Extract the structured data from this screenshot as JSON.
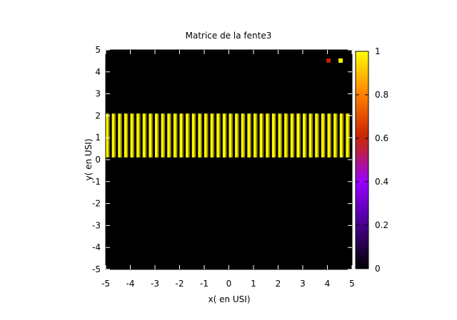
{
  "chart_data": {
    "type": "heatmap",
    "title": "Matrice de la fente3",
    "xlabel": "x( en USI)",
    "ylabel": "y( en USI)",
    "xlim": [
      -5,
      5
    ],
    "ylim": [
      -5,
      5
    ],
    "x_ticks": [
      "-5",
      "-4",
      "-3",
      "-2",
      "-1",
      "0",
      "1",
      "2",
      "3",
      "4",
      "5"
    ],
    "y_ticks": [
      "5",
      "4",
      "3",
      "2",
      "1",
      "0",
      "-1",
      "-2",
      "-3",
      "-4",
      "-5"
    ],
    "colorbar": {
      "range": [
        0,
        1
      ],
      "ticks": [
        "1",
        "0.8",
        "0.6",
        "0.4",
        "0.2",
        "0"
      ],
      "palette": [
        "#000000",
        "#8000ff",
        "#c0202a",
        "#ff8000",
        "#ffff00"
      ]
    },
    "background_value": 0,
    "band": {
      "y_min": 0.1,
      "y_max": 2.1,
      "value": 1,
      "slit_count": 40,
      "x_min": -5,
      "x_max": 5
    },
    "legend_markers": [
      {
        "value": 0.6,
        "color": "#c02000"
      },
      {
        "value": 1,
        "color": "#ffff00"
      }
    ],
    "legend_placement": "top-right"
  }
}
